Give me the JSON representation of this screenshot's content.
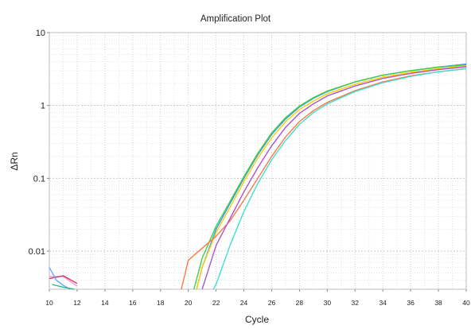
{
  "chart_data": {
    "type": "line",
    "title": "Amplification Plot",
    "xlabel": "Cycle",
    "ylabel": "ΔRn",
    "xlim": [
      10,
      40
    ],
    "ylim": [
      0.003,
      10
    ],
    "y_scale": "log",
    "grid": true,
    "x_ticks": [
      10,
      12,
      14,
      16,
      18,
      20,
      22,
      24,
      26,
      28,
      30,
      32,
      34,
      36,
      38,
      40
    ],
    "x_tick_labels": [
      "10",
      "12",
      "14",
      "16",
      "18",
      "20",
      "22",
      "24",
      "26",
      "28",
      "30",
      "32",
      "34",
      "36",
      "38",
      "40"
    ],
    "y_ticks": [
      0.01,
      0.1,
      1,
      10
    ],
    "y_tick_labels": [
      "0.01",
      "0.1",
      "1",
      "10"
    ],
    "series": [
      {
        "color": "#3399ff",
        "x": [
          20.6,
          21,
          22,
          23,
          24,
          25,
          26,
          27,
          28,
          29,
          30,
          32,
          34,
          36,
          38,
          40
        ],
        "y": [
          0.003,
          0.006,
          0.02,
          0.045,
          0.1,
          0.21,
          0.4,
          0.65,
          0.95,
          1.25,
          1.55,
          2.1,
          2.6,
          3.0,
          3.35,
          3.7
        ]
      },
      {
        "color": "#44cc44",
        "x": [
          20.4,
          21,
          22,
          23,
          24,
          25,
          26,
          27,
          28,
          29,
          30,
          32,
          34,
          36,
          38,
          40
        ],
        "y": [
          0.003,
          0.008,
          0.022,
          0.048,
          0.105,
          0.22,
          0.42,
          0.68,
          0.98,
          1.28,
          1.58,
          2.1,
          2.6,
          3.0,
          3.35,
          3.6
        ]
      },
      {
        "color": "#ffcc00",
        "x": [
          20.6,
          21,
          22,
          23,
          24,
          25,
          26,
          27,
          28,
          29,
          30,
          32,
          34,
          36,
          38,
          40
        ],
        "y": [
          0.003,
          0.006,
          0.018,
          0.04,
          0.09,
          0.19,
          0.36,
          0.6,
          0.88,
          1.15,
          1.45,
          1.95,
          2.45,
          2.85,
          3.2,
          3.5
        ]
      },
      {
        "color": "#ff7744",
        "x": [
          19.5,
          20,
          21,
          22,
          23,
          24,
          25,
          26,
          27,
          28,
          29,
          30,
          32,
          34,
          36,
          38,
          40
        ],
        "y": [
          0.003,
          0.0075,
          0.011,
          0.016,
          0.026,
          0.05,
          0.1,
          0.2,
          0.37,
          0.6,
          0.85,
          1.1,
          1.6,
          2.1,
          2.55,
          2.9,
          3.2
        ]
      },
      {
        "color": "#aa55cc",
        "x": [
          21,
          22,
          23,
          24,
          25,
          26,
          27,
          28,
          29,
          30,
          32,
          34,
          36,
          38,
          40
        ],
        "y": [
          0.003,
          0.012,
          0.028,
          0.065,
          0.14,
          0.28,
          0.5,
          0.78,
          1.05,
          1.35,
          1.85,
          2.35,
          2.75,
          3.1,
          3.4
        ]
      },
      {
        "color": "#40e0d0",
        "x": [
          21.8,
          22,
          23,
          24,
          25,
          26,
          27,
          28,
          29,
          30,
          32,
          34,
          36,
          38,
          40
        ],
        "y": [
          0.003,
          0.0035,
          0.012,
          0.035,
          0.085,
          0.18,
          0.33,
          0.55,
          0.8,
          1.05,
          1.55,
          2.05,
          2.5,
          2.9,
          3.2
        ]
      },
      {
        "color": "#ff99cc",
        "x": [
          10,
          11,
          12
        ],
        "y": [
          0.0045,
          0.0045,
          0.0033
        ]
      },
      {
        "color": "#cc3366",
        "x": [
          10,
          11,
          12
        ],
        "y": [
          0.0042,
          0.0046,
          0.0036
        ]
      },
      {
        "color": "#66aaff",
        "x": [
          10,
          10.5,
          11,
          11.5
        ],
        "y": [
          0.006,
          0.004,
          0.0034,
          0.003
        ]
      },
      {
        "color": "#33bb88",
        "x": [
          10.2,
          11,
          11.8
        ],
        "y": [
          0.0035,
          0.0032,
          0.003
        ]
      }
    ]
  }
}
